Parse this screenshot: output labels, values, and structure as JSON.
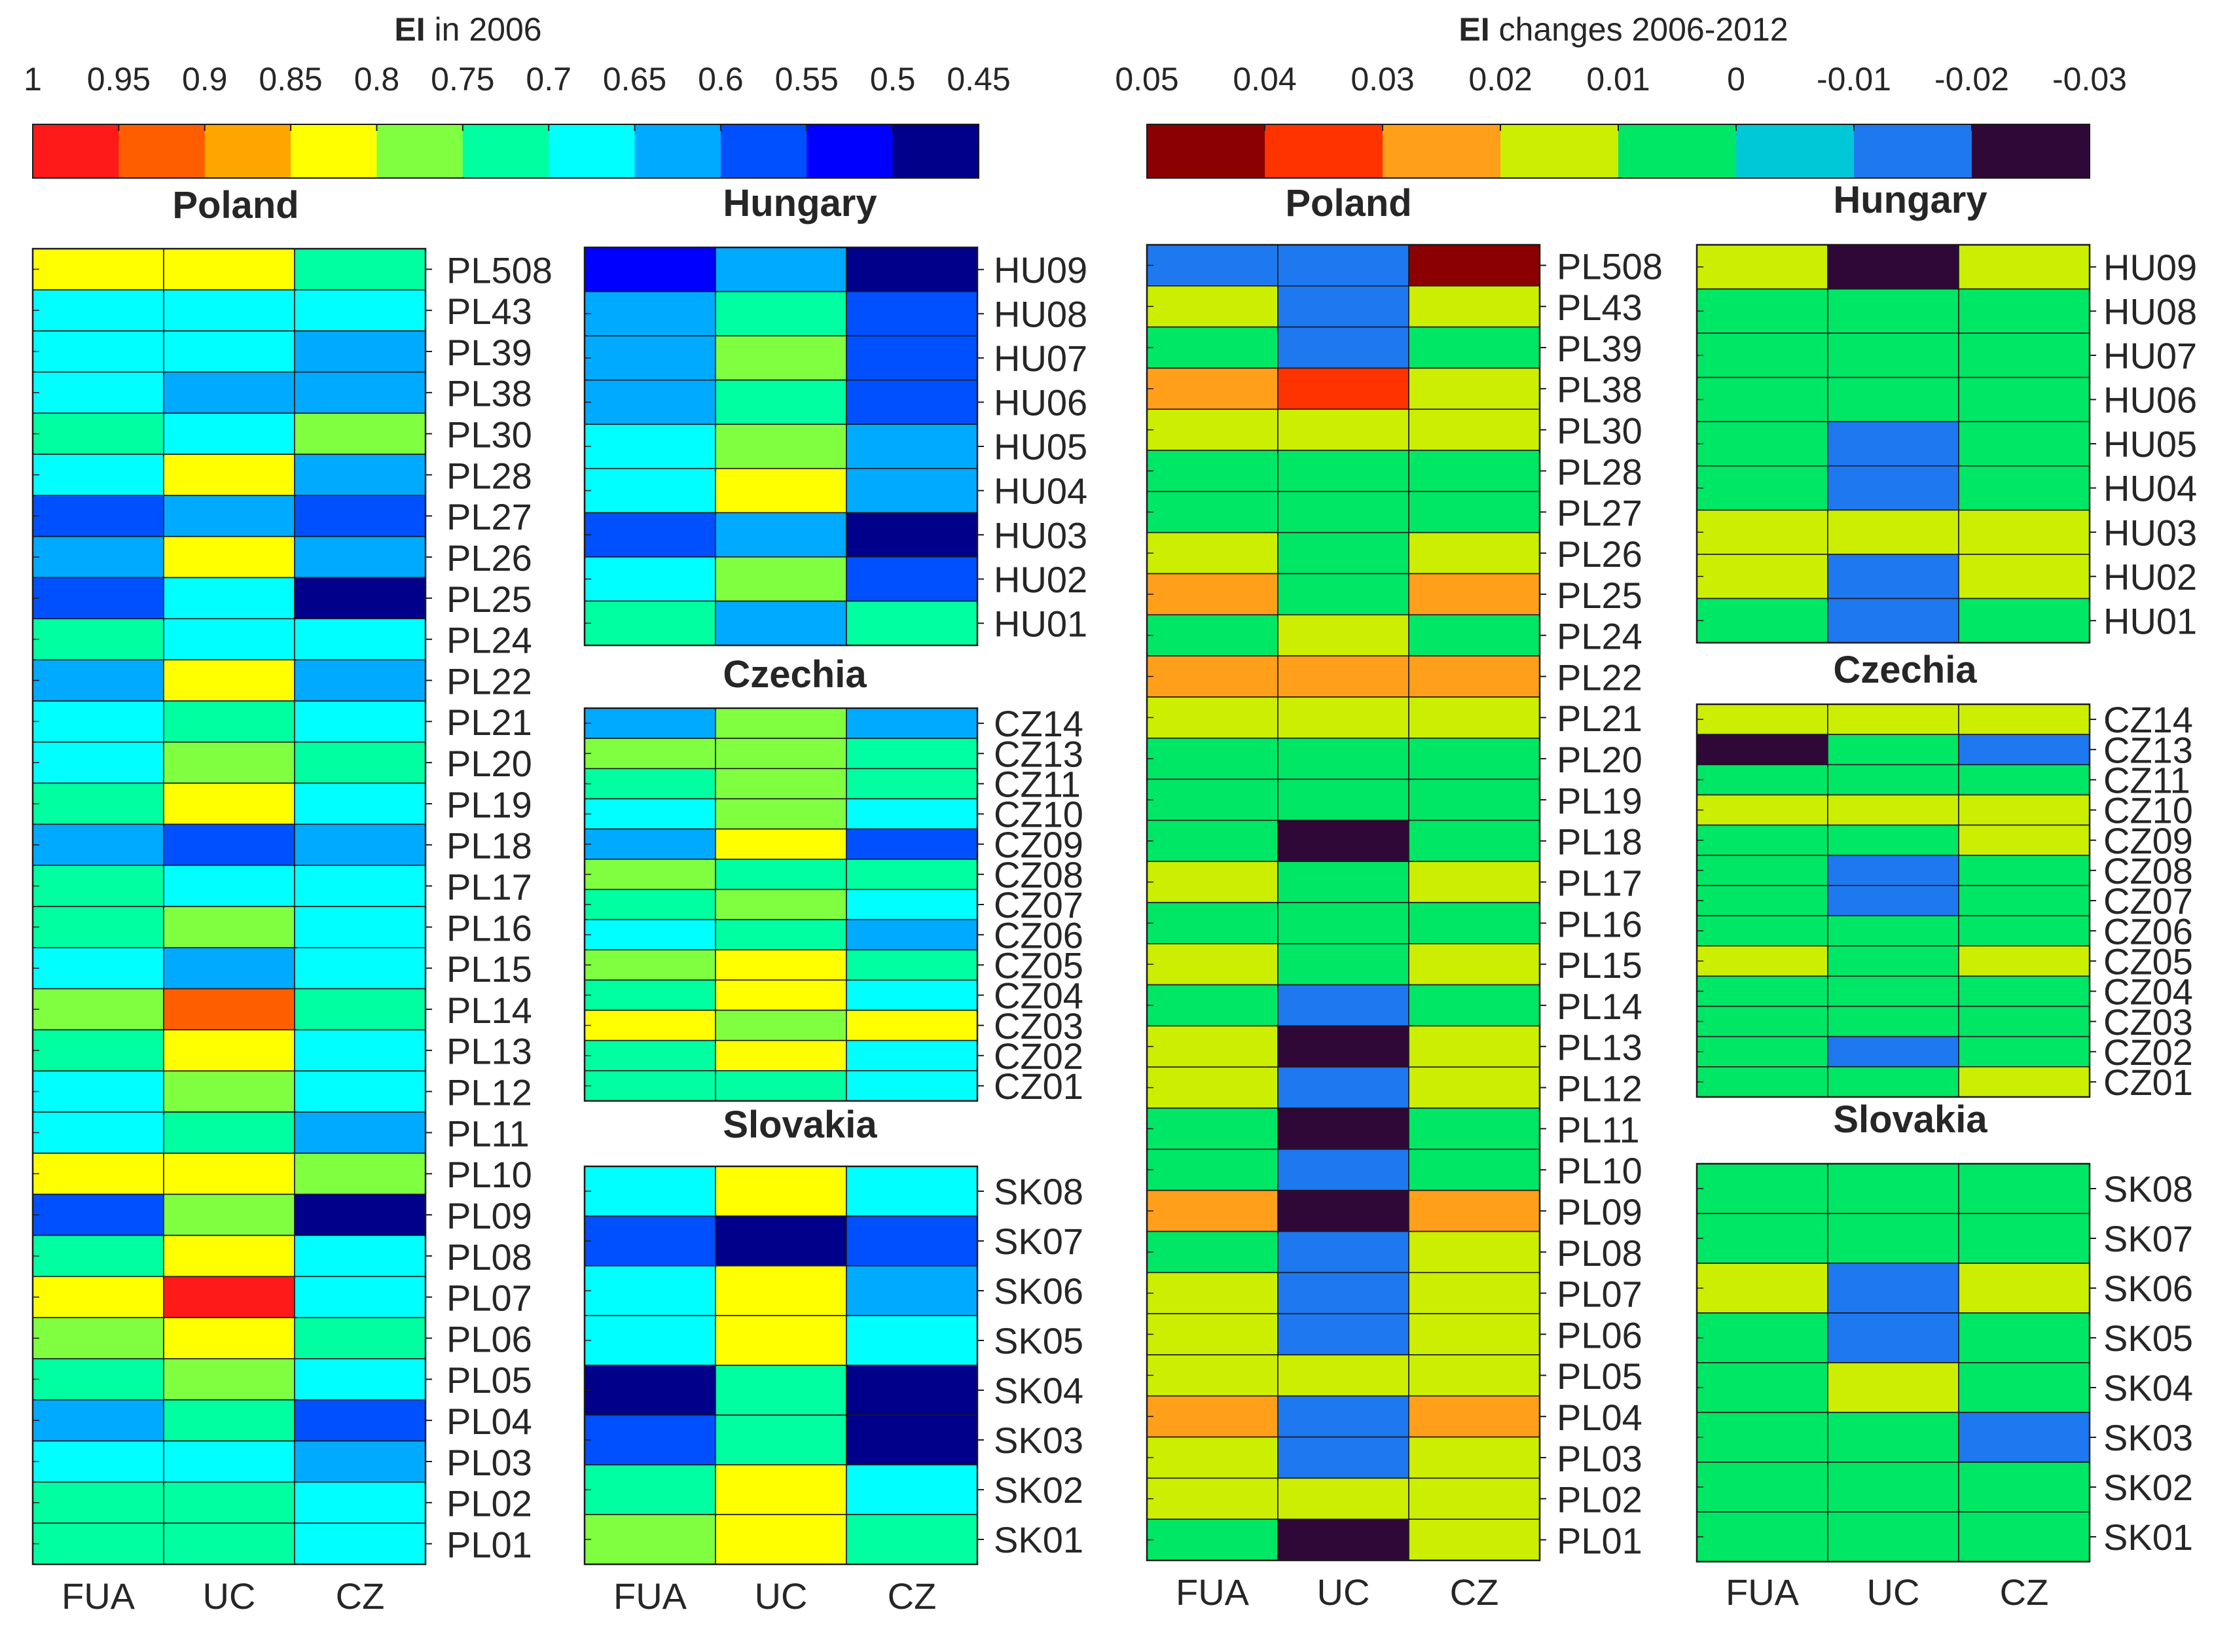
{
  "chart_data": {
    "type": "heatmap",
    "columns": [
      "FUA",
      "UC",
      "CZ"
    ],
    "colorbars": [
      {
        "id": "ei2006",
        "title_bold": "EI",
        "title_rest": " in 2006",
        "tick_labels": [
          "1",
          "0.95",
          "0.9",
          "0.85",
          "0.8",
          "0.75",
          "0.7",
          "0.65",
          "0.6",
          "0.55",
          "0.5",
          "0.45"
        ],
        "colors": [
          "#ff1a1a",
          "#ff5e00",
          "#ffa500",
          "#ffff00",
          "#80ff40",
          "#00ffa0",
          "#00ffff",
          "#00aaff",
          "#0050ff",
          "#0000ff",
          "#00008b"
        ]
      },
      {
        "id": "eichange",
        "title_bold": "EI",
        "title_rest": " changes 2006-2012",
        "tick_labels": [
          "0.05",
          "0.04",
          "0.03",
          "0.02",
          "0.01",
          "0",
          "-0.01",
          "-0.02",
          "-0.03"
        ],
        "colors": [
          "#8b0000",
          "#ff3300",
          "#ff9f1a",
          "#ccee00",
          "#00e665",
          "#00c8d6",
          "#1e78f0",
          "#300838"
        ]
      }
    ],
    "panels": [
      {
        "id": "pl2006",
        "country": "Poland",
        "colorbar": "ei2006",
        "rows": [
          "PL508",
          "PL43",
          "PL39",
          "PL38",
          "PL30",
          "PL28",
          "PL27",
          "PL26",
          "PL25",
          "PL24",
          "PL22",
          "PL21",
          "PL20",
          "PL19",
          "PL18",
          "PL17",
          "PL16",
          "PL15",
          "PL14",
          "PL13",
          "PL12",
          "PL11",
          "PL10",
          "PL09",
          "PL08",
          "PL07",
          "PL06",
          "PL05",
          "PL04",
          "PL03",
          "PL02",
          "PL01"
        ],
        "values": [
          [
            0.87,
            0.87,
            0.75
          ],
          [
            0.7,
            0.7,
            0.7
          ],
          [
            0.7,
            0.7,
            0.65
          ],
          [
            0.7,
            0.65,
            0.65
          ],
          [
            0.75,
            0.7,
            0.8
          ],
          [
            0.7,
            0.85,
            0.65
          ],
          [
            0.6,
            0.65,
            0.6
          ],
          [
            0.65,
            0.85,
            0.65
          ],
          [
            0.6,
            0.7,
            0.5
          ],
          [
            0.75,
            0.7,
            0.7
          ],
          [
            0.65,
            0.87,
            0.65
          ],
          [
            0.7,
            0.75,
            0.7
          ],
          [
            0.7,
            0.8,
            0.75
          ],
          [
            0.75,
            0.85,
            0.7
          ],
          [
            0.65,
            0.6,
            0.65
          ],
          [
            0.75,
            0.7,
            0.7
          ],
          [
            0.75,
            0.8,
            0.7
          ],
          [
            0.7,
            0.65,
            0.7
          ],
          [
            0.8,
            0.93,
            0.75
          ],
          [
            0.75,
            0.87,
            0.7
          ],
          [
            0.7,
            0.8,
            0.7
          ],
          [
            0.7,
            0.75,
            0.65
          ],
          [
            0.85,
            0.85,
            0.8
          ],
          [
            0.6,
            0.8,
            0.5
          ],
          [
            0.75,
            0.87,
            0.7
          ],
          [
            0.85,
            1.0,
            0.7
          ],
          [
            0.8,
            0.87,
            0.75
          ],
          [
            0.75,
            0.8,
            0.7
          ],
          [
            0.65,
            0.75,
            0.6
          ],
          [
            0.7,
            0.7,
            0.65
          ],
          [
            0.75,
            0.75,
            0.7
          ],
          [
            0.75,
            0.75,
            0.7
          ]
        ]
      },
      {
        "id": "hu2006",
        "country": "Hungary",
        "colorbar": "ei2006",
        "rows": [
          "HU09",
          "HU08",
          "HU07",
          "HU06",
          "HU05",
          "HU04",
          "HU03",
          "HU02",
          "HU01"
        ],
        "values": [
          [
            0.55,
            0.65,
            0.45
          ],
          [
            0.65,
            0.75,
            0.6
          ],
          [
            0.65,
            0.8,
            0.6
          ],
          [
            0.65,
            0.75,
            0.6
          ],
          [
            0.7,
            0.8,
            0.65
          ],
          [
            0.7,
            0.85,
            0.65
          ],
          [
            0.6,
            0.65,
            0.5
          ],
          [
            0.7,
            0.8,
            0.6
          ],
          [
            0.75,
            0.65,
            0.75
          ]
        ]
      },
      {
        "id": "cz2006",
        "country": "Czechia",
        "colorbar": "ei2006",
        "rows": [
          "CZ14",
          "CZ13",
          "CZ11",
          "CZ10",
          "CZ09",
          "CZ08",
          "CZ07",
          "CZ06",
          "CZ05",
          "CZ04",
          "CZ03",
          "CZ02",
          "CZ01"
        ],
        "values": [
          [
            0.65,
            0.8,
            0.65
          ],
          [
            0.8,
            0.8,
            0.75
          ],
          [
            0.75,
            0.8,
            0.75
          ],
          [
            0.7,
            0.8,
            0.7
          ],
          [
            0.65,
            0.85,
            0.6
          ],
          [
            0.8,
            0.75,
            0.75
          ],
          [
            0.75,
            0.8,
            0.7
          ],
          [
            0.7,
            0.75,
            0.65
          ],
          [
            0.8,
            0.87,
            0.75
          ],
          [
            0.75,
            0.85,
            0.7
          ],
          [
            0.85,
            0.8,
            0.85
          ],
          [
            0.75,
            0.85,
            0.7
          ],
          [
            0.75,
            0.75,
            0.7
          ]
        ]
      },
      {
        "id": "sk2006",
        "country": "Slovakia",
        "colorbar": "ei2006",
        "rows": [
          "SK08",
          "SK07",
          "SK06",
          "SK05",
          "SK04",
          "SK03",
          "SK02",
          "SK01"
        ],
        "values": [
          [
            0.7,
            0.85,
            0.7
          ],
          [
            0.6,
            0.45,
            0.6
          ],
          [
            0.7,
            0.87,
            0.65
          ],
          [
            0.7,
            0.85,
            0.7
          ],
          [
            0.5,
            0.75,
            0.45
          ],
          [
            0.6,
            0.75,
            0.5
          ],
          [
            0.75,
            0.85,
            0.7
          ],
          [
            0.8,
            0.87,
            0.75
          ]
        ]
      },
      {
        "id": "plchg",
        "country": "Poland",
        "colorbar": "eichange",
        "rows": [
          "PL508",
          "PL43",
          "PL39",
          "PL38",
          "PL30",
          "PL28",
          "PL27",
          "PL26",
          "PL25",
          "PL24",
          "PL22",
          "PL21",
          "PL20",
          "PL19",
          "PL18",
          "PL17",
          "PL16",
          "PL15",
          "PL14",
          "PL13",
          "PL12",
          "PL11",
          "PL10",
          "PL09",
          "PL08",
          "PL07",
          "PL06",
          "PL05",
          "PL04",
          "PL03",
          "PL02",
          "PL01"
        ],
        "values": [
          [
            -0.01,
            -0.01,
            0.05
          ],
          [
            0.02,
            -0.01,
            0.02
          ],
          [
            0.01,
            -0.01,
            0.01
          ],
          [
            0.03,
            0.04,
            0.02
          ],
          [
            0.02,
            0.02,
            0.02
          ],
          [
            0.01,
            0.01,
            0.01
          ],
          [
            0.01,
            0.01,
            0.01
          ],
          [
            0.02,
            0.01,
            0.02
          ],
          [
            0.03,
            0.01,
            0.03
          ],
          [
            0.01,
            0.02,
            0.01
          ],
          [
            0.03,
            0.03,
            0.03
          ],
          [
            0.02,
            0.02,
            0.02
          ],
          [
            0.01,
            0.01,
            0.01
          ],
          [
            0.01,
            0.01,
            0.01
          ],
          [
            0.01,
            -0.03,
            0.01
          ],
          [
            0.02,
            0.01,
            0.02
          ],
          [
            0.01,
            0.01,
            0.01
          ],
          [
            0.02,
            0.01,
            0.02
          ],
          [
            0.01,
            -0.01,
            0.01
          ],
          [
            0.02,
            -0.02,
            0.02
          ],
          [
            0.02,
            -0.01,
            0.02
          ],
          [
            0.01,
            -0.02,
            0.01
          ],
          [
            0.01,
            -0.01,
            0.01
          ],
          [
            0.03,
            -0.02,
            0.03
          ],
          [
            0.01,
            -0.01,
            0.02
          ],
          [
            0.02,
            -0.01,
            0.02
          ],
          [
            0.02,
            -0.01,
            0.02
          ],
          [
            0.02,
            0.02,
            0.02
          ],
          [
            0.03,
            -0.01,
            0.03
          ],
          [
            0.02,
            -0.01,
            0.02
          ],
          [
            0.02,
            0.02,
            0.02
          ],
          [
            0.01,
            -0.02,
            0.02
          ]
        ]
      },
      {
        "id": "huchg",
        "country": "Hungary",
        "colorbar": "eichange",
        "rows": [
          "HU09",
          "HU08",
          "HU07",
          "HU06",
          "HU05",
          "HU04",
          "HU03",
          "HU02",
          "HU01"
        ],
        "values": [
          [
            0.02,
            -0.02,
            0.02
          ],
          [
            0.01,
            0.01,
            0.01
          ],
          [
            0.01,
            0.01,
            0.01
          ],
          [
            0.01,
            0.01,
            0.01
          ],
          [
            0.01,
            -0.01,
            0.01
          ],
          [
            0.01,
            -0.01,
            0.01
          ],
          [
            0.02,
            0.02,
            0.02
          ],
          [
            0.02,
            -0.01,
            0.02
          ],
          [
            0.01,
            -0.01,
            0.01
          ]
        ]
      },
      {
        "id": "czchg",
        "country": "Czechia",
        "colorbar": "eichange",
        "rows": [
          "CZ14",
          "CZ13",
          "CZ11",
          "CZ10",
          "CZ09",
          "CZ08",
          "CZ07",
          "CZ06",
          "CZ05",
          "CZ04",
          "CZ03",
          "CZ02",
          "CZ01"
        ],
        "values": [
          [
            0.02,
            0.02,
            0.02
          ],
          [
            -0.03,
            0.01,
            -0.01
          ],
          [
            0.01,
            0.01,
            0.01
          ],
          [
            0.02,
            0.02,
            0.02
          ],
          [
            0.01,
            0.01,
            0.02
          ],
          [
            0.01,
            -0.01,
            0.01
          ],
          [
            0.01,
            -0.01,
            0.01
          ],
          [
            0.01,
            0.01,
            0.01
          ],
          [
            0.02,
            0.01,
            0.02
          ],
          [
            0.01,
            0.01,
            0.01
          ],
          [
            0.01,
            0.01,
            0.01
          ],
          [
            0.01,
            -0.01,
            0.01
          ],
          [
            0.01,
            0.01,
            0.02
          ]
        ]
      },
      {
        "id": "skchg",
        "country": "Slovakia",
        "colorbar": "eichange",
        "rows": [
          "SK08",
          "SK07",
          "SK06",
          "SK05",
          "SK04",
          "SK03",
          "SK02",
          "SK01"
        ],
        "values": [
          [
            0.01,
            0.01,
            0.01
          ],
          [
            0.01,
            0.01,
            0.01
          ],
          [
            0.02,
            -0.01,
            0.02
          ],
          [
            0.01,
            -0.01,
            0.01
          ],
          [
            0.01,
            0.02,
            0.01
          ],
          [
            0.01,
            0.01,
            -0.01
          ],
          [
            0.01,
            0.01,
            0.01
          ],
          [
            0.01,
            0.01,
            0.01
          ]
        ]
      }
    ]
  }
}
